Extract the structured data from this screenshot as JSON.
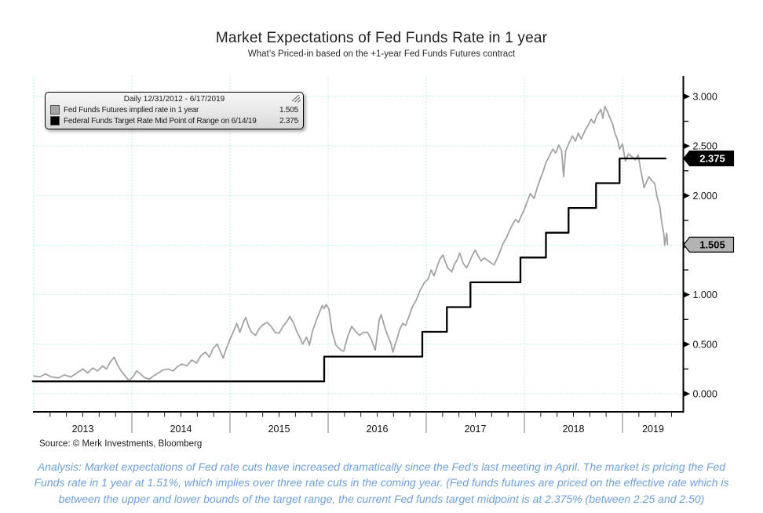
{
  "header": {
    "title": "Market Expectations of Fed Funds Rate in 1 year",
    "subtitle": "What’s Priced-in based on the +1-year Fed Funds Futures contract"
  },
  "legend": {
    "title": "Daily 12/31/2012 - 6/17/2019",
    "grip_icon": "drag-hatch-icon",
    "items": [
      {
        "swatch": "#a6a6a6",
        "label": "Fed Funds Futures implied rate in 1 year",
        "value": "1.505"
      },
      {
        "swatch": "#000000",
        "label": "Federal Funds Target Rate Mid Point of Range on 6/14/19",
        "value": "2.375"
      }
    ]
  },
  "chart_data": {
    "type": "line",
    "title": "Market Expectations of Fed Funds Rate in 1 year",
    "subtitle": "What’s Priced-in based on the +1-year Fed Funds Futures contract",
    "grid": true,
    "grid_color": "#a5e9e9",
    "x_axis": {
      "years": [
        2013,
        2014,
        2015,
        2016,
        2017,
        2018,
        2019
      ],
      "range": [
        2012.99,
        2019.62
      ],
      "minor_ticks_per_year": 6
    },
    "y_axis": {
      "min": 0,
      "max": 3,
      "major_step": 0.5,
      "minor_step": 0.25,
      "tick_labels": [
        "0.000",
        "0.500",
        "1.000",
        "1.500",
        "2.000",
        "2.500",
        "3.000"
      ]
    },
    "series": [
      {
        "name": "Fed Funds Futures implied rate in 1 year",
        "color": "#a3a3a3",
        "mode": "line",
        "points": [
          [
            2013.0,
            0.18
          ],
          [
            2013.06,
            0.17
          ],
          [
            2013.12,
            0.2
          ],
          [
            2013.18,
            0.17
          ],
          [
            2013.25,
            0.16
          ],
          [
            2013.31,
            0.19
          ],
          [
            2013.38,
            0.17
          ],
          [
            2013.44,
            0.21
          ],
          [
            2013.5,
            0.25
          ],
          [
            2013.55,
            0.21
          ],
          [
            2013.6,
            0.26
          ],
          [
            2013.65,
            0.23
          ],
          [
            2013.7,
            0.28
          ],
          [
            2013.74,
            0.25
          ],
          [
            2013.78,
            0.32
          ],
          [
            2013.82,
            0.37
          ],
          [
            2013.85,
            0.3
          ],
          [
            2013.89,
            0.23
          ],
          [
            2013.93,
            0.18
          ],
          [
            2013.97,
            0.13
          ],
          [
            2014.01,
            0.17
          ],
          [
            2014.05,
            0.23
          ],
          [
            2014.09,
            0.2
          ],
          [
            2014.13,
            0.16
          ],
          [
            2014.18,
            0.15
          ],
          [
            2014.22,
            0.18
          ],
          [
            2014.27,
            0.21
          ],
          [
            2014.32,
            0.24
          ],
          [
            2014.37,
            0.25
          ],
          [
            2014.42,
            0.23
          ],
          [
            2014.46,
            0.27
          ],
          [
            2014.51,
            0.3
          ],
          [
            2014.56,
            0.28
          ],
          [
            2014.61,
            0.34
          ],
          [
            2014.66,
            0.31
          ],
          [
            2014.7,
            0.38
          ],
          [
            2014.75,
            0.42
          ],
          [
            2014.79,
            0.37
          ],
          [
            2014.83,
            0.46
          ],
          [
            2014.87,
            0.5
          ],
          [
            2014.9,
            0.43
          ],
          [
            2014.93,
            0.36
          ],
          [
            2014.96,
            0.45
          ],
          [
            2015.0,
            0.55
          ],
          [
            2015.04,
            0.64
          ],
          [
            2015.07,
            0.71
          ],
          [
            2015.1,
            0.62
          ],
          [
            2015.14,
            0.73
          ],
          [
            2015.16,
            0.77
          ],
          [
            2015.19,
            0.68
          ],
          [
            2015.22,
            0.62
          ],
          [
            2015.26,
            0.59
          ],
          [
            2015.3,
            0.66
          ],
          [
            2015.34,
            0.7
          ],
          [
            2015.38,
            0.72
          ],
          [
            2015.42,
            0.68
          ],
          [
            2015.46,
            0.62
          ],
          [
            2015.5,
            0.61
          ],
          [
            2015.54,
            0.68
          ],
          [
            2015.58,
            0.73
          ],
          [
            2015.61,
            0.78
          ],
          [
            2015.65,
            0.71
          ],
          [
            2015.68,
            0.63
          ],
          [
            2015.71,
            0.57
          ],
          [
            2015.74,
            0.5
          ],
          [
            2015.78,
            0.57
          ],
          [
            2015.81,
            0.49
          ],
          [
            2015.84,
            0.63
          ],
          [
            2015.88,
            0.74
          ],
          [
            2015.91,
            0.82
          ],
          [
            2015.94,
            0.89
          ],
          [
            2015.96,
            0.86
          ],
          [
            2015.98,
            0.9
          ],
          [
            2016.01,
            0.85
          ],
          [
            2016.04,
            0.63
          ],
          [
            2016.08,
            0.49
          ],
          [
            2016.13,
            0.44
          ],
          [
            2016.16,
            0.43
          ],
          [
            2016.2,
            0.58
          ],
          [
            2016.24,
            0.68
          ],
          [
            2016.28,
            0.63
          ],
          [
            2016.32,
            0.59
          ],
          [
            2016.36,
            0.62
          ],
          [
            2016.4,
            0.62
          ],
          [
            2016.44,
            0.55
          ],
          [
            2016.48,
            0.44
          ],
          [
            2016.52,
            0.74
          ],
          [
            2016.54,
            0.8
          ],
          [
            2016.58,
            0.66
          ],
          [
            2016.61,
            0.58
          ],
          [
            2016.64,
            0.51
          ],
          [
            2016.66,
            0.42
          ],
          [
            2016.7,
            0.55
          ],
          [
            2016.73,
            0.65
          ],
          [
            2016.76,
            0.71
          ],
          [
            2016.79,
            0.69
          ],
          [
            2016.82,
            0.77
          ],
          [
            2016.86,
            0.88
          ],
          [
            2016.9,
            0.95
          ],
          [
            2016.94,
            1.05
          ],
          [
            2016.98,
            1.12
          ],
          [
            2017.02,
            1.16
          ],
          [
            2017.05,
            1.25
          ],
          [
            2017.08,
            1.19
          ],
          [
            2017.11,
            1.28
          ],
          [
            2017.14,
            1.36
          ],
          [
            2017.17,
            1.4
          ],
          [
            2017.19,
            1.34
          ],
          [
            2017.22,
            1.27
          ],
          [
            2017.26,
            1.23
          ],
          [
            2017.29,
            1.31
          ],
          [
            2017.32,
            1.36
          ],
          [
            2017.34,
            1.42
          ],
          [
            2017.38,
            1.31
          ],
          [
            2017.41,
            1.27
          ],
          [
            2017.44,
            1.33
          ],
          [
            2017.47,
            1.4
          ],
          [
            2017.5,
            1.45
          ],
          [
            2017.53,
            1.39
          ],
          [
            2017.56,
            1.34
          ],
          [
            2017.59,
            1.37
          ],
          [
            2017.62,
            1.35
          ],
          [
            2017.66,
            1.32
          ],
          [
            2017.69,
            1.3
          ],
          [
            2017.72,
            1.36
          ],
          [
            2017.75,
            1.43
          ],
          [
            2017.78,
            1.51
          ],
          [
            2017.82,
            1.58
          ],
          [
            2017.85,
            1.65
          ],
          [
            2017.88,
            1.71
          ],
          [
            2017.91,
            1.76
          ],
          [
            2017.94,
            1.73
          ],
          [
            2017.97,
            1.8
          ],
          [
            2018.0,
            1.86
          ],
          [
            2018.03,
            1.94
          ],
          [
            2018.06,
            2.02
          ],
          [
            2018.1,
            1.97
          ],
          [
            2018.13,
            2.08
          ],
          [
            2018.16,
            2.16
          ],
          [
            2018.19,
            2.24
          ],
          [
            2018.22,
            2.33
          ],
          [
            2018.26,
            2.41
          ],
          [
            2018.29,
            2.47
          ],
          [
            2018.32,
            2.43
          ],
          [
            2018.35,
            2.51
          ],
          [
            2018.38,
            2.45
          ],
          [
            2018.4,
            2.19
          ],
          [
            2018.42,
            2.45
          ],
          [
            2018.46,
            2.54
          ],
          [
            2018.49,
            2.6
          ],
          [
            2018.52,
            2.55
          ],
          [
            2018.55,
            2.63
          ],
          [
            2018.58,
            2.57
          ],
          [
            2018.62,
            2.66
          ],
          [
            2018.65,
            2.71
          ],
          [
            2018.68,
            2.77
          ],
          [
            2018.71,
            2.73
          ],
          [
            2018.74,
            2.81
          ],
          [
            2018.78,
            2.87
          ],
          [
            2018.8,
            2.78
          ],
          [
            2018.82,
            2.9
          ],
          [
            2018.85,
            2.84
          ],
          [
            2018.87,
            2.79
          ],
          [
            2018.9,
            2.72
          ],
          [
            2018.92,
            2.64
          ],
          [
            2018.95,
            2.56
          ],
          [
            2018.97,
            2.47
          ],
          [
            2019.0,
            2.52
          ],
          [
            2019.03,
            2.35
          ],
          [
            2019.06,
            2.42
          ],
          [
            2019.1,
            2.39
          ],
          [
            2019.13,
            2.36
          ],
          [
            2019.16,
            2.41
          ],
          [
            2019.18,
            2.29
          ],
          [
            2019.22,
            2.08
          ],
          [
            2019.25,
            2.15
          ],
          [
            2019.27,
            2.19
          ],
          [
            2019.3,
            2.15
          ],
          [
            2019.33,
            2.12
          ],
          [
            2019.35,
            2.0
          ],
          [
            2019.38,
            1.89
          ],
          [
            2019.4,
            1.73
          ],
          [
            2019.42,
            1.62
          ],
          [
            2019.43,
            1.5
          ],
          [
            2019.45,
            1.62
          ],
          [
            2019.46,
            1.505
          ]
        ]
      },
      {
        "name": "Federal Funds Target Rate Mid Point of Range on 6/14/19",
        "color": "#000000",
        "mode": "step",
        "points": [
          [
            2012.99,
            0.125
          ],
          [
            2015.96,
            0.125
          ],
          [
            2015.96,
            0.375
          ],
          [
            2016.96,
            0.375
          ],
          [
            2016.96,
            0.625
          ],
          [
            2017.21,
            0.625
          ],
          [
            2017.21,
            0.875
          ],
          [
            2017.45,
            0.875
          ],
          [
            2017.45,
            1.125
          ],
          [
            2017.96,
            1.125
          ],
          [
            2017.96,
            1.375
          ],
          [
            2018.22,
            1.375
          ],
          [
            2018.22,
            1.625
          ],
          [
            2018.45,
            1.625
          ],
          [
            2018.45,
            1.875
          ],
          [
            2018.73,
            1.875
          ],
          [
            2018.73,
            2.125
          ],
          [
            2018.97,
            2.125
          ],
          [
            2018.97,
            2.375
          ],
          [
            2019.44,
            2.375
          ]
        ]
      }
    ],
    "callouts": [
      {
        "label": "2.375",
        "value": 2.375,
        "bg": "#000000",
        "fg": "#ffffff",
        "border": "#000000"
      },
      {
        "label": "1.505",
        "value": 1.505,
        "bg": "#b3b3b3",
        "fg": "#000000",
        "border": "#000000"
      }
    ]
  },
  "footer": {
    "source": "Source: © Merk Investments, Bloomberg",
    "analysis": "Analysis: Market expectations of Fed rate cuts have increased dramatically since the Fed’s last meeting in April. The market is pricing the Fed Funds rate in 1 year at 1.51%, which implies over three rate cuts in the coming year. (Fed funds futures are priced on the effective rate which is between the upper and lower bounds of the target range, the current Fed funds target midpoint is at 2.375% (between 2.25 and 2.50)"
  }
}
